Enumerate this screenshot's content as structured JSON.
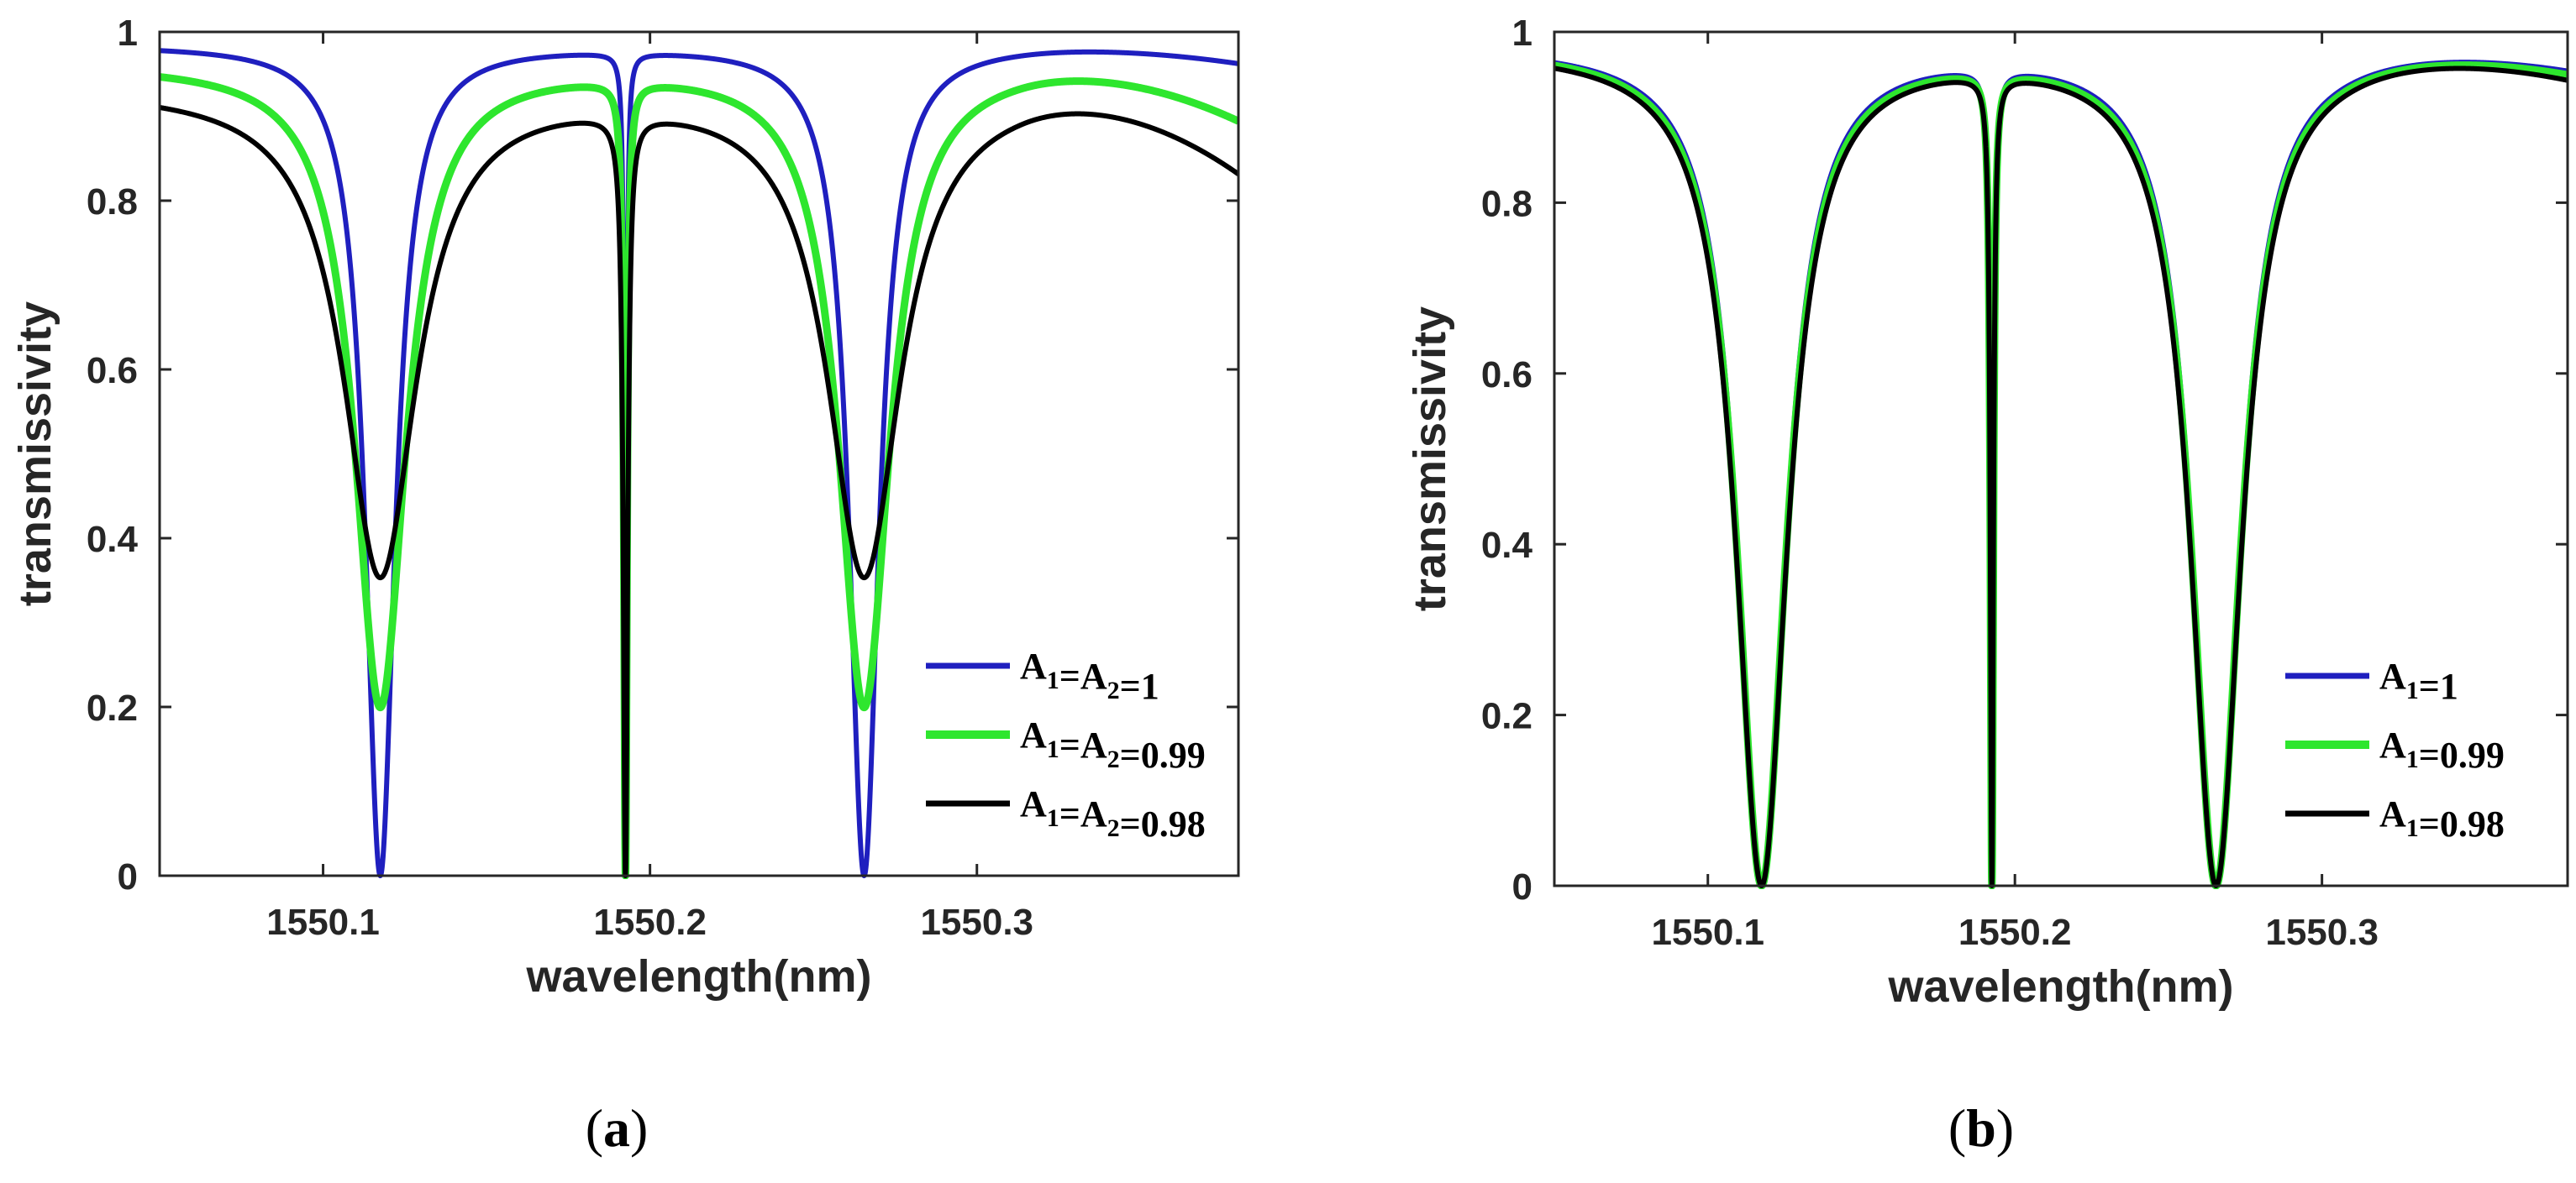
{
  "colors": {
    "blue": "#1f1fbf",
    "green": "#2ee62e",
    "black": "#000000",
    "axis": "#262626"
  },
  "chart_data": [
    {
      "panel": "a",
      "panel_label": "a",
      "type": "line",
      "xlabel": "wavelength(nm)",
      "ylabel": "transmissivity",
      "xlim": [
        1550.05,
        1550.38
      ],
      "ylim": [
        0,
        1
      ],
      "xticks": [
        1550.1,
        1550.2,
        1550.3
      ],
      "xtick_labels": [
        "1550.1",
        "1550.2",
        "1550.3"
      ],
      "yticks": [
        0,
        0.2,
        0.4,
        0.6,
        0.8,
        1
      ],
      "ytick_labels": [
        "0",
        "0.2",
        "0.4",
        "0.6",
        "0.8",
        "1"
      ],
      "grid": false,
      "legend_position": "bottom-right",
      "dips": [
        {
          "center": 1550.1175,
          "kind": "wide"
        },
        {
          "center": 1550.1925,
          "kind": "narrow"
        },
        {
          "center": 1550.2655,
          "kind": "wide"
        }
      ],
      "series": [
        {
          "name": "A1=A2=1",
          "legend": {
            "main": "A",
            "sub1": "1",
            "mid": "=A",
            "sub2": "2",
            "tail": "=1"
          },
          "color_key": "blue",
          "peak": 0.985,
          "wide_min": 0.0,
          "wide_halfwidth": 0.0055,
          "narrow_min": 0.0,
          "narrow_halfwidth": 0.0004,
          "tail_right": 0.965,
          "profile_exponent": 1.0
        },
        {
          "name": "A1=A2=0.99",
          "legend": {
            "main": "A",
            "sub1": "1",
            "mid": "=A",
            "sub2": "2",
            "tail": "=0.99"
          },
          "color_key": "green",
          "peak": 0.963,
          "wide_min": 0.2,
          "wide_halfwidth": 0.0095,
          "narrow_min": 0.0,
          "narrow_halfwidth": 0.0006,
          "tail_right": 0.9,
          "profile_exponent": 1.0
        },
        {
          "name": "A1=A2=0.98",
          "legend": {
            "main": "A",
            "sub1": "1",
            "mid": "=A",
            "sub2": "2",
            "tail": "=0.98"
          },
          "color_key": "black",
          "peak": 0.935,
          "wide_min": 0.355,
          "wide_halfwidth": 0.0135,
          "narrow_min": 0.0,
          "narrow_halfwidth": 0.0008,
          "tail_right": 0.84,
          "profile_exponent": 1.0
        }
      ]
    },
    {
      "panel": "b",
      "panel_label": "b",
      "type": "line",
      "xlabel": "wavelength(nm)",
      "ylabel": "transmissivity",
      "xlim": [
        1550.05,
        1550.38
      ],
      "ylim": [
        0,
        1
      ],
      "xticks": [
        1550.1,
        1550.2,
        1550.3
      ],
      "xtick_labels": [
        "1550.1",
        "1550.2",
        "1550.3"
      ],
      "yticks": [
        0,
        0.2,
        0.4,
        0.6,
        0.8,
        1
      ],
      "ytick_labels": [
        "0",
        "0.2",
        "0.4",
        "0.6",
        "0.8",
        "1"
      ],
      "grid": false,
      "legend_position": "bottom-right",
      "dips": [
        {
          "center": 1550.1175,
          "kind": "wide"
        },
        {
          "center": 1550.1925,
          "kind": "narrow"
        },
        {
          "center": 1550.2655,
          "kind": "wide"
        }
      ],
      "series": [
        {
          "name": "A1=1",
          "legend": {
            "main": "A",
            "sub1": "1",
            "mid": "",
            "sub2": "",
            "tail": "=1"
          },
          "color_key": "blue",
          "peak": 0.985,
          "wide_min": 0.0,
          "wide_halfwidth": 0.0095,
          "narrow_min": 0.0,
          "narrow_halfwidth": 0.0006,
          "tail_right": 0.962,
          "profile_exponent": 1.0
        },
        {
          "name": "A1=0.99",
          "legend": {
            "main": "A",
            "sub1": "1",
            "mid": "",
            "sub2": "",
            "tail": "=0.99"
          },
          "color_key": "green",
          "peak": 0.983,
          "wide_min": 0.0,
          "wide_halfwidth": 0.0098,
          "narrow_min": 0.0,
          "narrow_halfwidth": 0.0006,
          "tail_right": 0.958,
          "profile_exponent": 1.0
        },
        {
          "name": "A1=0.98",
          "legend": {
            "main": "A",
            "sub1": "1",
            "mid": "",
            "sub2": "",
            "tail": "=0.98"
          },
          "color_key": "black",
          "peak": 0.981,
          "wide_min": 0.0,
          "wide_halfwidth": 0.0101,
          "narrow_min": 0.0,
          "narrow_halfwidth": 0.0006,
          "tail_right": 0.952,
          "profile_exponent": 1.0
        }
      ]
    }
  ]
}
